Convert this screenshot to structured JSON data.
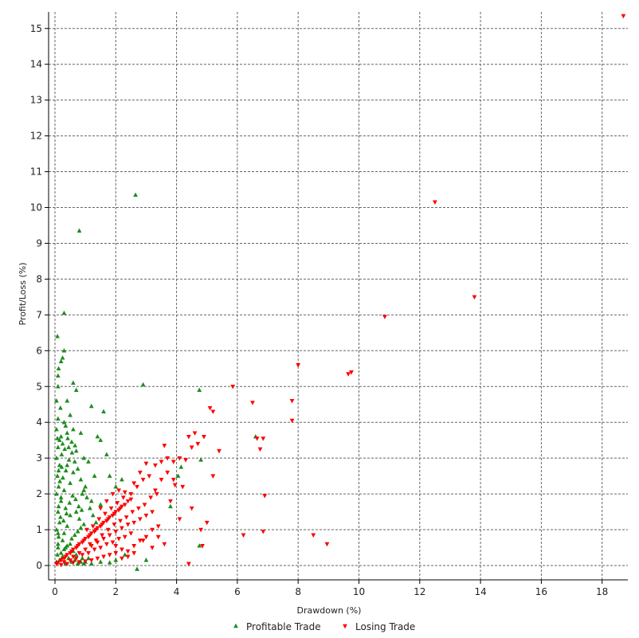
{
  "chart_data": {
    "type": "scatter",
    "xlabel": "Drawdown (%)",
    "ylabel": "Profit/Loss (%)",
    "xlim": [
      -0.3,
      18.8
    ],
    "ylim": [
      -0.2,
      15.6
    ],
    "xticks": [
      0,
      2,
      4,
      6,
      8,
      10,
      12,
      14,
      16,
      18
    ],
    "yticks": [
      0,
      1,
      2,
      3,
      4,
      5,
      6,
      7,
      8,
      9,
      10,
      11,
      12,
      13,
      14,
      15
    ],
    "grid": true,
    "legend_position": "bottom-center",
    "series": [
      {
        "name": "Profitable Trade",
        "marker": "triangle-up",
        "color": "#1e8c1e",
        "points": [
          [
            0.05,
            0.1
          ],
          [
            0.08,
            0.3
          ],
          [
            0.1,
            0.5
          ],
          [
            0.12,
            0.8
          ],
          [
            0.05,
            1.0
          ],
          [
            0.15,
            1.2
          ],
          [
            0.1,
            1.5
          ],
          [
            0.2,
            1.8
          ],
          [
            0.05,
            2.0
          ],
          [
            0.12,
            2.2
          ],
          [
            0.08,
            2.5
          ],
          [
            0.15,
            2.8
          ],
          [
            0.05,
            3.0
          ],
          [
            0.1,
            3.3
          ],
          [
            0.2,
            3.6
          ],
          [
            0.05,
            3.8
          ],
          [
            0.1,
            4.1
          ],
          [
            0.05,
            4.6
          ],
          [
            0.1,
            5.0
          ],
          [
            0.1,
            5.3
          ],
          [
            0.12,
            5.5
          ],
          [
            0.08,
            6.4
          ],
          [
            0.3,
            7.05
          ],
          [
            0.8,
            9.35
          ],
          [
            2.65,
            10.35
          ],
          [
            2.9,
            5.05
          ],
          [
            4.75,
            4.9
          ],
          [
            0.3,
            6.0
          ],
          [
            0.25,
            5.8
          ],
          [
            0.2,
            5.7
          ],
          [
            0.6,
            5.1
          ],
          [
            0.7,
            4.9
          ],
          [
            0.4,
            4.6
          ],
          [
            1.2,
            4.45
          ],
          [
            1.6,
            4.3
          ],
          [
            0.5,
            4.2
          ],
          [
            0.3,
            4.0
          ],
          [
            0.35,
            3.9
          ],
          [
            0.6,
            3.8
          ],
          [
            0.85,
            3.7
          ],
          [
            0.15,
            3.5
          ],
          [
            0.25,
            3.4
          ],
          [
            0.45,
            3.3
          ],
          [
            0.7,
            3.2
          ],
          [
            0.95,
            3.0
          ],
          [
            1.1,
            2.9
          ],
          [
            1.4,
            3.6
          ],
          [
            1.5,
            3.5
          ],
          [
            1.7,
            3.1
          ],
          [
            1.8,
            2.5
          ],
          [
            2.0,
            2.2
          ],
          [
            2.2,
            2.4
          ],
          [
            1.3,
            2.5
          ],
          [
            0.9,
            2.0
          ],
          [
            1.0,
            2.2
          ],
          [
            1.2,
            1.8
          ],
          [
            1.5,
            1.7
          ],
          [
            0.5,
            2.3
          ],
          [
            0.6,
            2.6
          ],
          [
            0.4,
            2.8
          ],
          [
            0.3,
            2.1
          ],
          [
            0.2,
            1.9
          ],
          [
            0.35,
            1.6
          ],
          [
            0.5,
            1.4
          ],
          [
            0.7,
            1.5
          ],
          [
            0.8,
            1.3
          ],
          [
            0.4,
            1.1
          ],
          [
            0.3,
            0.9
          ],
          [
            0.25,
            0.7
          ],
          [
            0.35,
            0.5
          ],
          [
            0.5,
            0.6
          ],
          [
            0.6,
            0.4
          ],
          [
            0.7,
            0.3
          ],
          [
            0.9,
            0.2
          ],
          [
            1.0,
            0.1
          ],
          [
            1.2,
            0.05
          ],
          [
            1.5,
            0.1
          ],
          [
            1.8,
            0.08
          ],
          [
            2.0,
            0.15
          ],
          [
            2.3,
            0.3
          ],
          [
            2.7,
            -0.1
          ],
          [
            3.0,
            0.15
          ],
          [
            3.8,
            1.65
          ],
          [
            4.05,
            2.5
          ],
          [
            4.15,
            2.75
          ],
          [
            4.75,
            0.55
          ],
          [
            4.8,
            2.95
          ],
          [
            6.6,
            3.6
          ],
          [
            0.18,
            4.4
          ],
          [
            0.22,
            3.1
          ],
          [
            0.4,
            3.7
          ],
          [
            0.55,
            3.45
          ],
          [
            0.65,
            2.9
          ],
          [
            0.75,
            2.7
          ],
          [
            0.85,
            2.4
          ],
          [
            0.95,
            2.1
          ],
          [
            1.05,
            1.9
          ],
          [
            1.15,
            1.6
          ],
          [
            1.25,
            1.4
          ],
          [
            1.35,
            1.2
          ],
          [
            0.45,
            0.2
          ],
          [
            0.55,
            0.1
          ],
          [
            0.15,
            0.15
          ],
          [
            0.25,
            0.25
          ],
          [
            0.35,
            0.05
          ],
          [
            0.65,
            0.15
          ],
          [
            0.75,
            0.05
          ],
          [
            0.85,
            0.1
          ],
          [
            0.95,
            0.05
          ],
          [
            1.1,
            0.2
          ],
          [
            0.2,
            0.35
          ],
          [
            0.3,
            0.45
          ],
          [
            0.4,
            0.55
          ],
          [
            0.55,
            0.75
          ],
          [
            0.65,
            0.85
          ],
          [
            0.75,
            0.95
          ],
          [
            0.85,
            1.05
          ],
          [
            0.95,
            1.15
          ],
          [
            0.1,
            0.6
          ],
          [
            0.1,
            0.9
          ],
          [
            0.18,
            1.35
          ],
          [
            0.28,
            1.25
          ],
          [
            0.38,
            1.45
          ],
          [
            0.48,
            1.75
          ],
          [
            0.58,
            1.95
          ],
          [
            0.68,
            1.85
          ],
          [
            0.78,
            1.65
          ],
          [
            0.88,
            1.55
          ],
          [
            0.12,
            1.65
          ],
          [
            0.16,
            2.35
          ],
          [
            0.26,
            2.45
          ],
          [
            0.36,
            2.65
          ],
          [
            0.46,
            2.95
          ],
          [
            0.56,
            3.15
          ],
          [
            0.66,
            3.35
          ],
          [
            0.22,
            2.75
          ],
          [
            0.32,
            3.25
          ],
          [
            0.42,
            3.55
          ],
          [
            0.12,
            2.65
          ],
          [
            0.08,
            3.55
          ]
        ]
      },
      {
        "name": "Losing Trade",
        "marker": "triangle-down",
        "color": "#ff0000",
        "points": [
          [
            0.05,
            0.05
          ],
          [
            0.1,
            0.08
          ],
          [
            0.2,
            0.15
          ],
          [
            0.3,
            0.2
          ],
          [
            0.4,
            0.3
          ],
          [
            0.5,
            0.35
          ],
          [
            0.6,
            0.45
          ],
          [
            0.7,
            0.5
          ],
          [
            0.8,
            0.6
          ],
          [
            0.9,
            0.65
          ],
          [
            1.0,
            0.75
          ],
          [
            1.1,
            0.8
          ],
          [
            1.2,
            0.9
          ],
          [
            1.3,
            0.95
          ],
          [
            1.4,
            1.05
          ],
          [
            1.5,
            1.1
          ],
          [
            1.6,
            1.2
          ],
          [
            1.7,
            1.25
          ],
          [
            1.8,
            1.35
          ],
          [
            1.9,
            1.4
          ],
          [
            2.0,
            1.5
          ],
          [
            2.1,
            1.55
          ],
          [
            2.2,
            1.65
          ],
          [
            2.3,
            1.7
          ],
          [
            2.4,
            1.8
          ],
          [
            2.5,
            1.85
          ],
          [
            0.3,
            0.1
          ],
          [
            0.5,
            0.15
          ],
          [
            0.7,
            0.2
          ],
          [
            0.9,
            0.3
          ],
          [
            1.1,
            0.35
          ],
          [
            1.3,
            0.45
          ],
          [
            1.5,
            0.5
          ],
          [
            1.7,
            0.6
          ],
          [
            1.9,
            0.65
          ],
          [
            2.1,
            0.75
          ],
          [
            2.3,
            0.8
          ],
          [
            2.5,
            0.9
          ],
          [
            0.6,
            0.25
          ],
          [
            0.8,
            0.35
          ],
          [
            1.0,
            0.45
          ],
          [
            1.2,
            0.55
          ],
          [
            1.4,
            0.65
          ],
          [
            1.6,
            0.75
          ],
          [
            1.8,
            0.85
          ],
          [
            2.0,
            0.95
          ],
          [
            2.2,
            1.05
          ],
          [
            2.4,
            1.15
          ],
          [
            2.6,
            1.2
          ],
          [
            2.8,
            1.3
          ],
          [
            3.0,
            1.4
          ],
          [
            3.2,
            1.5
          ],
          [
            2.0,
            0.55
          ],
          [
            2.2,
            0.45
          ],
          [
            2.4,
            0.4
          ],
          [
            2.6,
            0.55
          ],
          [
            2.8,
            0.7
          ],
          [
            3.0,
            0.8
          ],
          [
            3.2,
            1.0
          ],
          [
            3.4,
            1.1
          ],
          [
            2.5,
            2.0
          ],
          [
            2.7,
            2.2
          ],
          [
            2.9,
            2.4
          ],
          [
            3.1,
            2.5
          ],
          [
            3.3,
            2.8
          ],
          [
            3.5,
            2.9
          ],
          [
            3.7,
            3.0
          ],
          [
            3.9,
            2.9
          ],
          [
            4.1,
            3.0
          ],
          [
            4.3,
            2.95
          ],
          [
            4.5,
            3.3
          ],
          [
            4.7,
            3.4
          ],
          [
            4.9,
            3.6
          ],
          [
            3.6,
            3.35
          ],
          [
            3.95,
            2.25
          ],
          [
            4.2,
            2.2
          ],
          [
            4.5,
            1.6
          ],
          [
            4.8,
            1.0
          ],
          [
            5.0,
            1.2
          ],
          [
            5.2,
            2.5
          ],
          [
            5.4,
            3.2
          ],
          [
            5.2,
            4.3
          ],
          [
            5.1,
            4.4
          ],
          [
            4.6,
            3.7
          ],
          [
            4.4,
            3.6
          ],
          [
            3.8,
            1.8
          ],
          [
            3.6,
            0.6
          ],
          [
            3.4,
            0.8
          ],
          [
            3.2,
            0.5
          ],
          [
            2.9,
            0.7
          ],
          [
            4.4,
            0.05
          ],
          [
            4.85,
            0.55
          ],
          [
            5.85,
            5.0
          ],
          [
            6.2,
            0.85
          ],
          [
            6.5,
            4.55
          ],
          [
            6.65,
            3.55
          ],
          [
            6.75,
            3.25
          ],
          [
            6.85,
            3.55
          ],
          [
            6.9,
            1.95
          ],
          [
            6.85,
            0.95
          ],
          [
            7.8,
            4.6
          ],
          [
            7.8,
            4.05
          ],
          [
            8.0,
            5.6
          ],
          [
            8.5,
            0.85
          ],
          [
            8.95,
            0.6
          ],
          [
            9.65,
            5.35
          ],
          [
            9.75,
            5.4
          ],
          [
            10.85,
            6.95
          ],
          [
            12.5,
            10.15
          ],
          [
            13.8,
            7.5
          ],
          [
            18.7,
            15.35
          ],
          [
            1.5,
            1.6
          ],
          [
            1.7,
            1.8
          ],
          [
            1.9,
            2.0
          ],
          [
            2.1,
            2.1
          ],
          [
            2.3,
            2.05
          ],
          [
            2.6,
            2.3
          ],
          [
            2.8,
            2.6
          ],
          [
            3.0,
            2.85
          ],
          [
            3.3,
            2.1
          ],
          [
            3.5,
            2.4
          ],
          [
            3.7,
            2.6
          ],
          [
            3.9,
            2.4
          ],
          [
            4.1,
            1.3
          ],
          [
            0.2,
            0.02
          ],
          [
            0.4,
            0.05
          ],
          [
            0.6,
            0.08
          ],
          [
            0.8,
            0.1
          ],
          [
            1.0,
            0.12
          ],
          [
            1.2,
            0.15
          ],
          [
            1.4,
            0.2
          ],
          [
            1.6,
            0.25
          ],
          [
            1.8,
            0.3
          ],
          [
            2.0,
            0.35
          ],
          [
            2.2,
            0.2
          ],
          [
            2.4,
            0.25
          ],
          [
            2.6,
            0.35
          ],
          [
            1.05,
            1.0
          ],
          [
            1.25,
            1.1
          ],
          [
            1.45,
            1.3
          ],
          [
            1.65,
            1.45
          ],
          [
            1.85,
            1.6
          ],
          [
            2.05,
            1.75
          ],
          [
            2.25,
            1.9
          ],
          [
            1.15,
            0.6
          ],
          [
            1.35,
            0.7
          ],
          [
            1.55,
            0.85
          ],
          [
            1.75,
            1.0
          ],
          [
            1.95,
            1.15
          ],
          [
            2.15,
            1.25
          ],
          [
            2.35,
            1.35
          ],
          [
            2.55,
            1.5
          ],
          [
            2.75,
            1.6
          ],
          [
            2.95,
            1.7
          ],
          [
            3.15,
            1.9
          ],
          [
            3.35,
            2.0
          ],
          [
            0.35,
            0.25
          ],
          [
            0.55,
            0.4
          ],
          [
            0.75,
            0.55
          ],
          [
            0.95,
            0.7
          ],
          [
            1.15,
            0.85
          ],
          [
            1.35,
            1.0
          ],
          [
            1.55,
            1.15
          ],
          [
            1.75,
            1.3
          ],
          [
            1.95,
            1.45
          ],
          [
            2.15,
            1.6
          ]
        ]
      }
    ]
  }
}
